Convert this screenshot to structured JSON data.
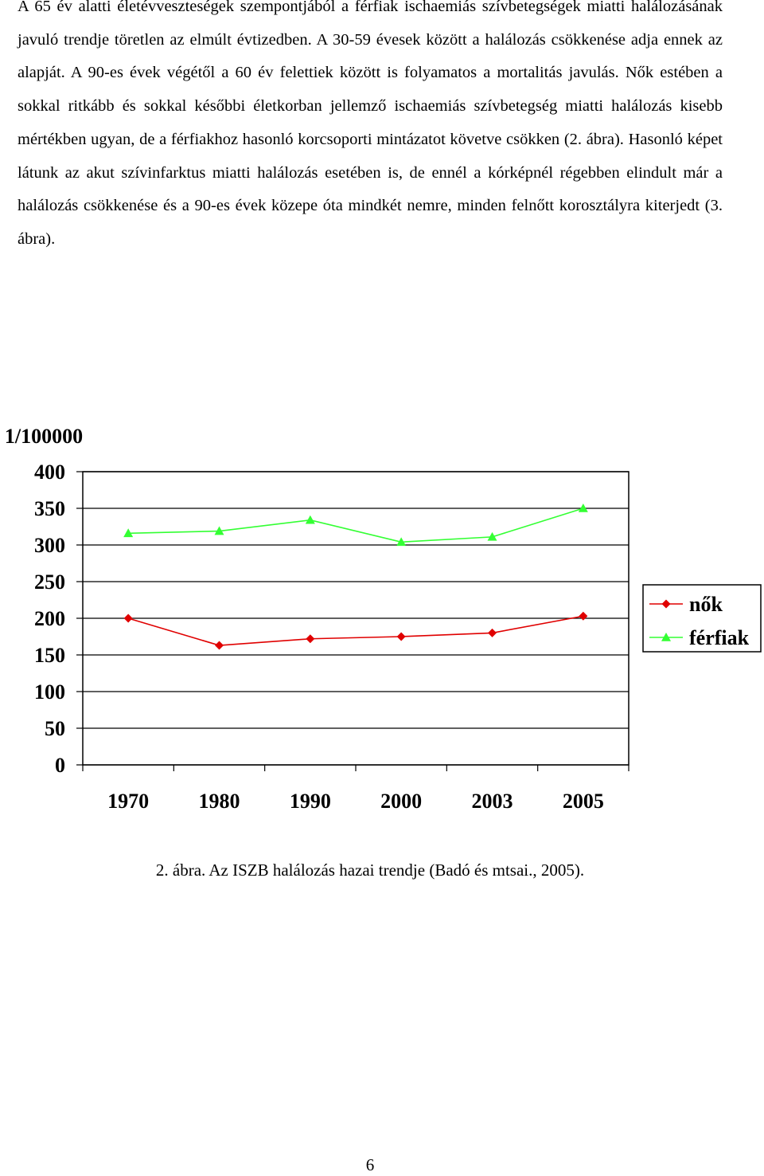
{
  "paragraph": "A 65 év alatti életévveszteségek szempontjából a férfiak ischaemiás szívbetegségek miatti halálozásának javuló trendje töretlen az elmúlt évtizedben. A 30-59 évesek között a halálozás csökkenése adja ennek az alapját. A 90-es évek végétől a 60 év felettiek között is folyamatos a mortalitás javulás. Nők estében a sokkal ritkább és sokkal későbbi életkorban jellemző ischaemiás szívbetegség miatti halálozás kisebb mértékben ugyan, de a férfiakhoz hasonló korcsoporti mintázatot követve csökken (2. ábra). Hasonló képet látunk az akut szívinfarktus miatti halálozás esetében is, de ennél a kórképnél régebben elindult már a halálozás csökkenése és a 90-es évek közepe óta mindkét nemre, minden felnőtt korosztályra kiterjedt (3. ábra).",
  "chart_data": {
    "type": "line",
    "y_unit_label": "1/100000",
    "ylim": [
      0,
      400
    ],
    "y_ticks": [
      "0",
      "50",
      "100",
      "150",
      "200",
      "250",
      "300",
      "350",
      "400"
    ],
    "categories": [
      "1970",
      "1980",
      "1990",
      "2000",
      "2003",
      "2005"
    ],
    "grid": "horizontal",
    "legend_position": "right",
    "series": [
      {
        "name": "nők",
        "marker": "diamond",
        "color": "#e00000",
        "values": [
          200,
          163,
          172,
          175,
          180,
          203
        ]
      },
      {
        "name": "férfiak",
        "marker": "triangle",
        "color": "#33ff33",
        "values": [
          316,
          319,
          334,
          304,
          311,
          350
        ]
      }
    ]
  },
  "caption": "2. ábra. Az ISZB halálozás hazai trendje (Badó és mtsai., 2005).",
  "page_number": "6"
}
